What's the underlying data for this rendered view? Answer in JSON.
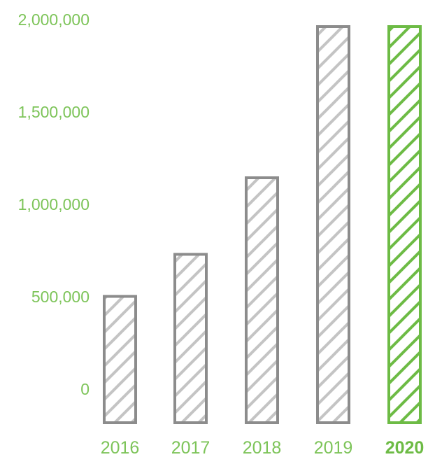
{
  "chart_data": {
    "type": "bar",
    "categories": [
      "2016",
      "2017",
      "2018",
      "2019",
      "2020"
    ],
    "values": [
      660000,
      880000,
      1280000,
      2070000,
      2070000
    ],
    "highlighted_category": "2020",
    "title": "",
    "xlabel": "",
    "ylabel": "",
    "ylim": [
      0,
      2000000
    ],
    "y_ticks": [
      {
        "value": 0,
        "label": "0"
      },
      {
        "value": 500000,
        "label": "500,000"
      },
      {
        "value": 1000000,
        "label": "1,000,000"
      },
      {
        "value": 1500000,
        "label": "1,500,000"
      },
      {
        "value": 2000000,
        "label": "2,000,000"
      }
    ],
    "grid": false,
    "bar_fill": "diagonal-hatch",
    "colors": {
      "bar": "#8c8c8c",
      "highlight": "#6dbb45",
      "axis_text": "#7dc459",
      "hatch": "#c4c4c4",
      "highlight_hatch": "#6dbb45"
    }
  }
}
